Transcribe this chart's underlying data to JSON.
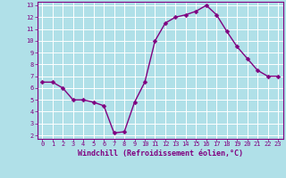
{
  "x": [
    0,
    1,
    2,
    3,
    4,
    5,
    6,
    7,
    8,
    9,
    10,
    11,
    12,
    13,
    14,
    15,
    16,
    17,
    18,
    19,
    20,
    21,
    22,
    23
  ],
  "y": [
    6.5,
    6.5,
    6.0,
    5.0,
    5.0,
    4.8,
    4.5,
    2.2,
    2.3,
    4.8,
    6.5,
    10.0,
    11.5,
    12.0,
    12.2,
    12.5,
    13.0,
    12.2,
    10.8,
    9.5,
    8.5,
    7.5,
    7.0,
    7.0
  ],
  "line_color": "#800080",
  "marker_color": "#800080",
  "bg_color": "#b0e0e8",
  "grid_color": "#ffffff",
  "xlabel": "Windchill (Refroidissement éolien,°C)",
  "xlabel_color": "#800080",
  "xlim_min": -0.5,
  "xlim_max": 23.5,
  "ylim_min": 1.7,
  "ylim_max": 13.3,
  "yticks": [
    2,
    3,
    4,
    5,
    6,
    7,
    8,
    9,
    10,
    11,
    12,
    13
  ],
  "xticks": [
    0,
    1,
    2,
    3,
    4,
    5,
    6,
    7,
    8,
    9,
    10,
    11,
    12,
    13,
    14,
    15,
    16,
    17,
    18,
    19,
    20,
    21,
    22,
    23
  ],
  "tick_color": "#800080",
  "tick_label_color": "#800080",
  "marker_size": 2.5,
  "line_width": 1.0
}
